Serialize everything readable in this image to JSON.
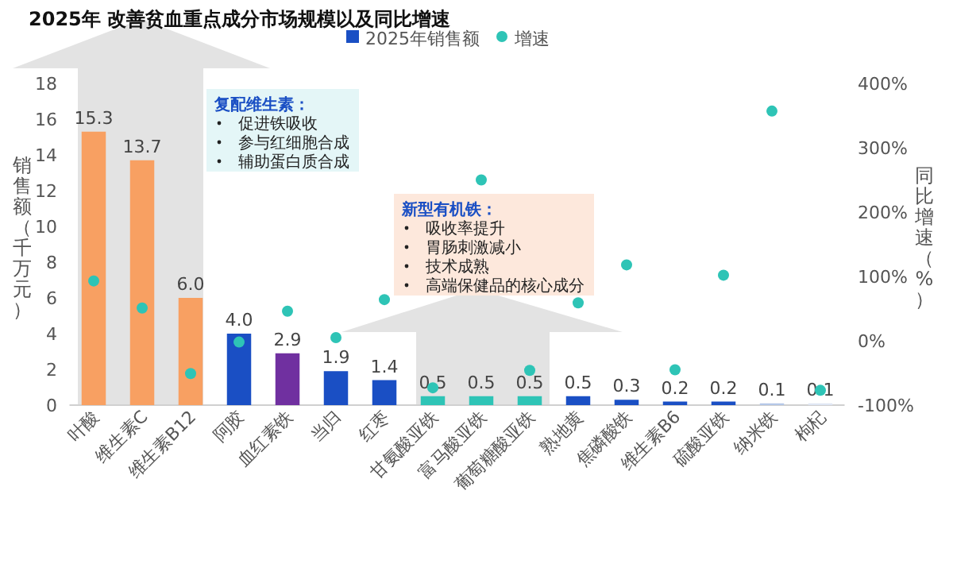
{
  "chart_data": {
    "type": "bar",
    "title": "2025年 改善贫血重点成分市场规模以及同比增速",
    "categories": [
      "叶酸",
      "维生素C",
      "维生素B12",
      "阿胶",
      "血红素铁",
      "当归",
      "红枣",
      "甘氨酸亚铁",
      "富马酸亚铁",
      "葡萄糖酸亚铁",
      "熟地黄",
      "焦磷酸铁",
      "维生素B6",
      "硫酸亚铁",
      "纳米铁",
      "枸杞"
    ],
    "series": [
      {
        "name": "2025年销售额",
        "color": "#1a4fc4",
        "colors": [
          "#f8a062",
          "#f8a062",
          "#f8a062",
          "#1a4fc4",
          "#7030a0",
          "#1a4fc4",
          "#1a4fc4",
          "#2ec4b6",
          "#2ec4b6",
          "#2ec4b6",
          "#1a4fc4",
          "#1a4fc4",
          "#1a4fc4",
          "#1a4fc4",
          "#b4c7e7",
          "#dfe6f3"
        ],
        "values": [
          15.3,
          13.7,
          6.0,
          4.0,
          2.9,
          1.9,
          1.4,
          0.5,
          0.5,
          0.5,
          0.5,
          0.3,
          0.2,
          0.2,
          0.1,
          0.1
        ],
        "value_labels": [
          "15.3",
          "13.7",
          "6.0",
          "4.0",
          "2.9",
          "1.9",
          "1.4",
          "0.5",
          "0.5",
          "0.5",
          "0.5",
          "0.3",
          "0.2",
          "0.2",
          "0.1",
          "0.1"
        ]
      },
      {
        "name": "增速",
        "type": "scatter",
        "axis": "y2",
        "color": "#2ec4b6",
        "values": [
          93,
          51,
          -51,
          -2,
          46,
          5,
          64,
          -73,
          250,
          -46,
          59,
          118,
          -45,
          102,
          357,
          -77
        ]
      }
    ],
    "ylabel": "销售额（千万元）",
    "y2label": "同比增速（%）",
    "ylim": [
      0,
      18
    ],
    "yticks": [
      0,
      2,
      4,
      6,
      8,
      10,
      12,
      14,
      16,
      18
    ],
    "y2lim": [
      -100,
      400
    ],
    "y2ticks": [
      {
        "value": -100,
        "label": "-100%"
      },
      {
        "value": 0,
        "label": "0%"
      },
      {
        "value": 100,
        "label": "100%"
      },
      {
        "value": 200,
        "label": "200%"
      },
      {
        "value": 300,
        "label": "300%"
      },
      {
        "value": 400,
        "label": "400%"
      }
    ],
    "legend": "top",
    "marker": "circle",
    "grid": false,
    "annotations": [
      "复配维生素：",
      "促进铁吸收",
      "参与红细胞合成",
      "辅助蛋白质合成",
      "新型有机铁：",
      "吸收率提升",
      "胃肠刺激减小",
      "技术成熟",
      "高端保健品的核心成分"
    ]
  }
}
